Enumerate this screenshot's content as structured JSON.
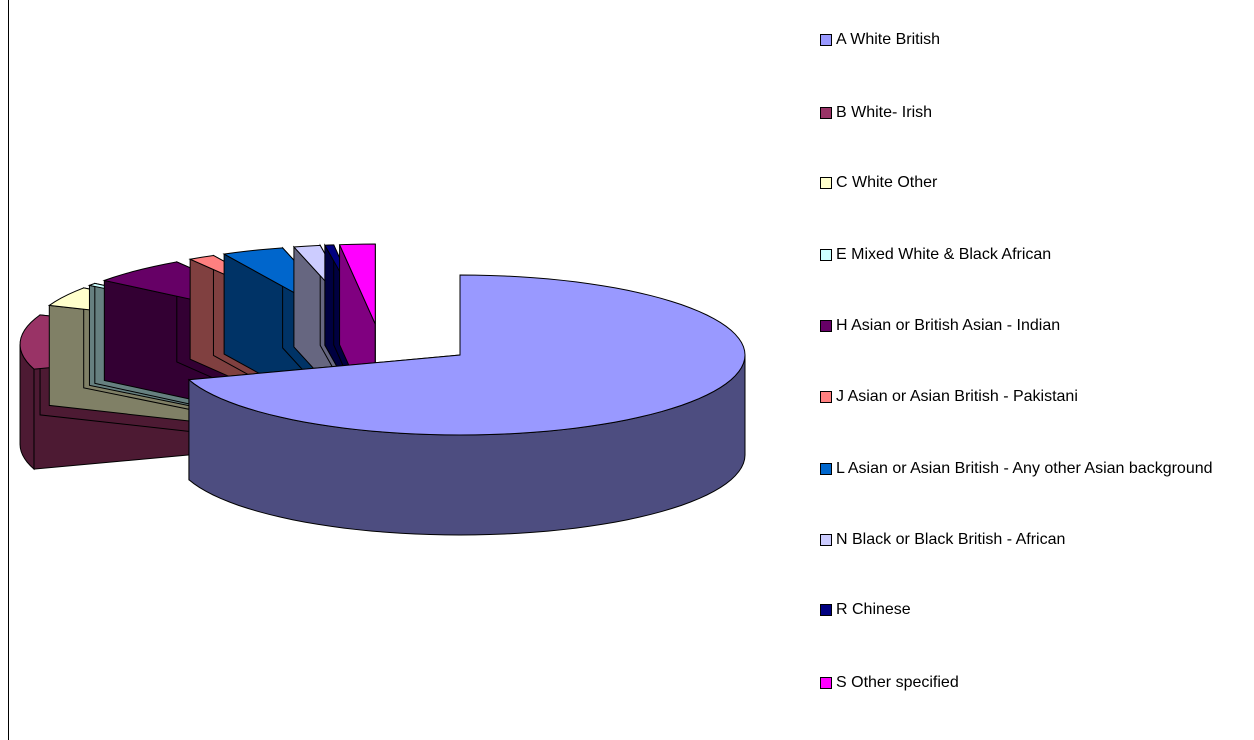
{
  "chart_data": {
    "type": "pie",
    "style": "3d-exploded",
    "legend_position": "right",
    "series": [
      {
        "label": "A White British",
        "value": 70.0,
        "color": "#9999ff"
      },
      {
        "label": "B White- Irish",
        "value": 11.0,
        "color": "#993366"
      },
      {
        "label": "C White Other",
        "value": 4.0,
        "color": "#ffffcc"
      },
      {
        "label": "E Mixed White & Black African",
        "value": 0.5,
        "color": "#ccffff"
      },
      {
        "label": "H Asian or British Asian - Indian",
        "value": 5.5,
        "color": "#660066"
      },
      {
        "label": "J Asian or Asian British -  Pakistani",
        "value": 1.5,
        "color": "#ff8080"
      },
      {
        "label": "L Asian or Asian British - Any other Asian background",
        "value": 3.5,
        "color": "#0066cc"
      },
      {
        "label": "N Black or Black British - African",
        "value": 1.5,
        "color": "#ccccff"
      },
      {
        "label": "R Chinese",
        "value": 0.5,
        "color": "#000080"
      },
      {
        "label": "S Other specified",
        "value": 2.0,
        "color": "#ff00ff"
      }
    ]
  }
}
